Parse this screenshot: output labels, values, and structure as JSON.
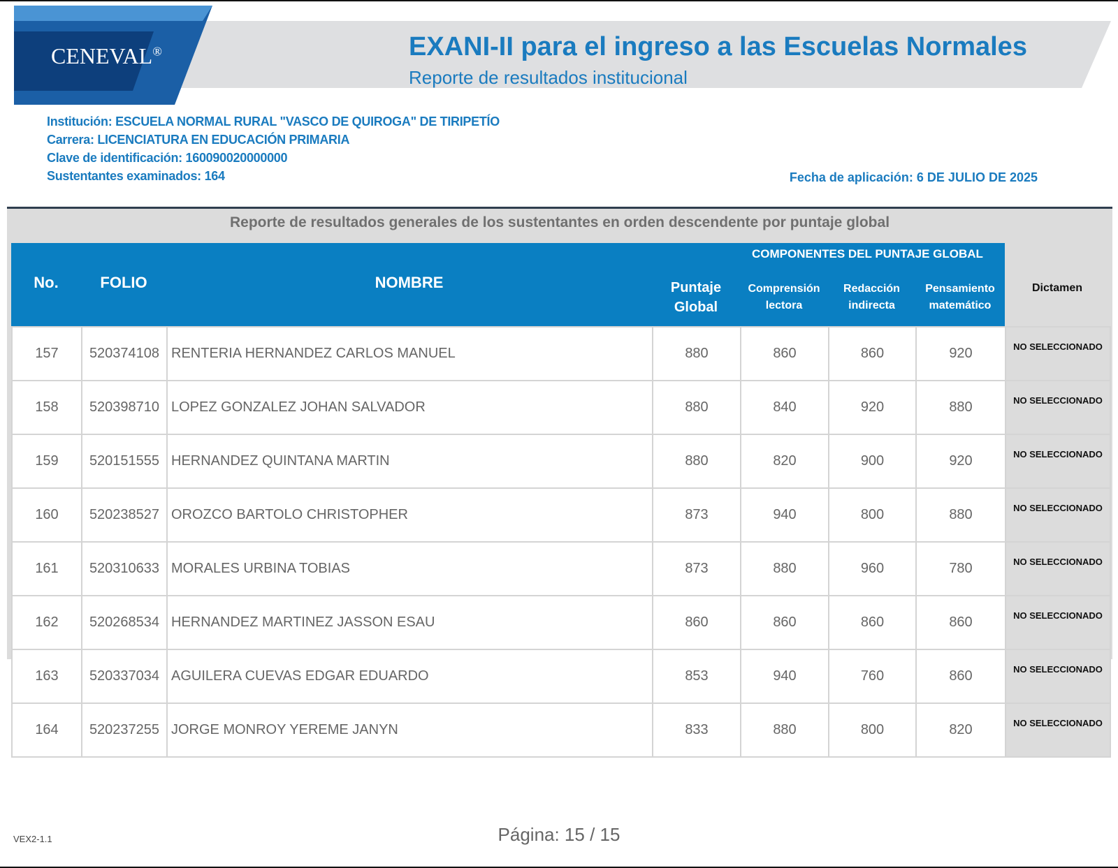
{
  "header": {
    "logo": "CENEVAL",
    "logo_mark": "®",
    "title": "EXANI-II para el ingreso a las Escuelas Normales",
    "subtitle": "Reporte de resultados institucional"
  },
  "info": {
    "lines": [
      "Institución: ESCUELA NORMAL RURAL \"VASCO DE QUIROGA\" DE TIRIPETÍO",
      "Carrera: LICENCIATURA EN EDUCACIÓN PRIMARIA",
      "Clave de identificación:  160090020000000",
      "Sustentantes examinados:  164"
    ],
    "date": "Fecha de aplicación: 6 DE JULIO DE 2025"
  },
  "table": {
    "caption": "Reporte de resultados generales de los sustentantes en orden descendente por puntaje global",
    "group_header": "COMPONENTES DEL PUNTAJE GLOBAL",
    "headers": [
      "No.",
      "FOLIO",
      "NOMBRE",
      "Puntaje Global",
      "Comprensión lectora",
      "Redacción indirecta",
      "Pensamiento matemático",
      "Dictamen"
    ],
    "rows": [
      [
        157,
        520374108,
        "RENTERIA HERNANDEZ CARLOS MANUEL",
        880,
        860,
        860,
        920,
        "NO SELECCIONADO"
      ],
      [
        158,
        520398710,
        "LOPEZ GONZALEZ JOHAN SALVADOR",
        880,
        840,
        920,
        880,
        "NO SELECCIONADO"
      ],
      [
        159,
        520151555,
        "HERNANDEZ QUINTANA MARTIN",
        880,
        820,
        900,
        920,
        "NO SELECCIONADO"
      ],
      [
        160,
        520238527,
        "OROZCO BARTOLO CHRISTOPHER",
        873,
        940,
        800,
        880,
        "NO SELECCIONADO"
      ],
      [
        161,
        520310633,
        "MORALES URBINA TOBIAS",
        873,
        880,
        960,
        780,
        "NO SELECCIONADO"
      ],
      [
        162,
        520268534,
        "HERNANDEZ MARTINEZ JASSON ESAU",
        860,
        860,
        860,
        860,
        "NO SELECCIONADO"
      ],
      [
        163,
        520337034,
        "AGUILERA CUEVAS EDGAR EDUARDO",
        853,
        940,
        760,
        860,
        "NO SELECCIONADO"
      ],
      [
        164,
        520237255,
        "JORGE MONROY YEREME JANYN",
        833,
        880,
        800,
        820,
        "NO SELECCIONADO"
      ]
    ]
  },
  "footer": {
    "version": "VEX2-1.1",
    "page": "Página: 15 / 15"
  }
}
